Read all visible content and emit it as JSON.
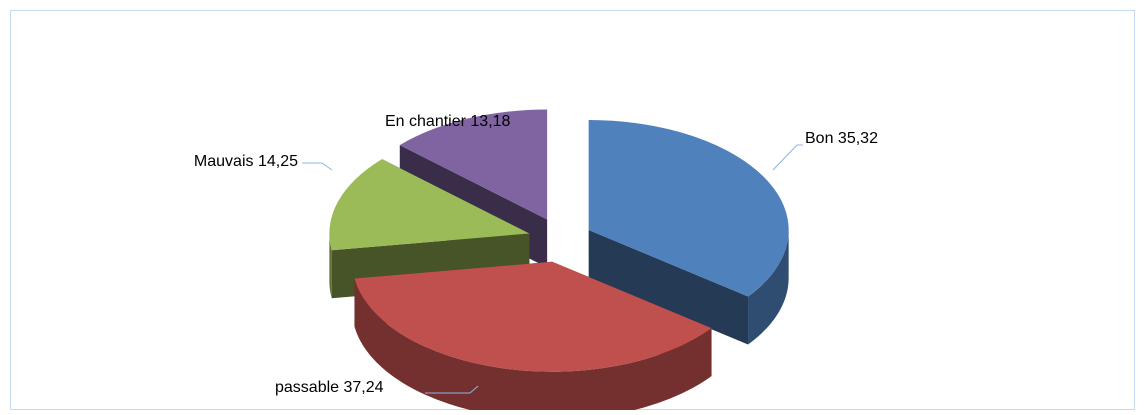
{
  "chart_data": {
    "type": "pie3d",
    "categories": [
      "Bon",
      "passable",
      "Mauvais",
      "En chantier"
    ],
    "values": [
      35.32,
      37.24,
      14.25,
      13.18
    ],
    "value_labels": [
      "35,32",
      "37,24",
      "14,25",
      "13,18"
    ],
    "colors": [
      "#4f81bd",
      "#c0504d",
      "#9bbb59",
      "#8064a2"
    ]
  }
}
